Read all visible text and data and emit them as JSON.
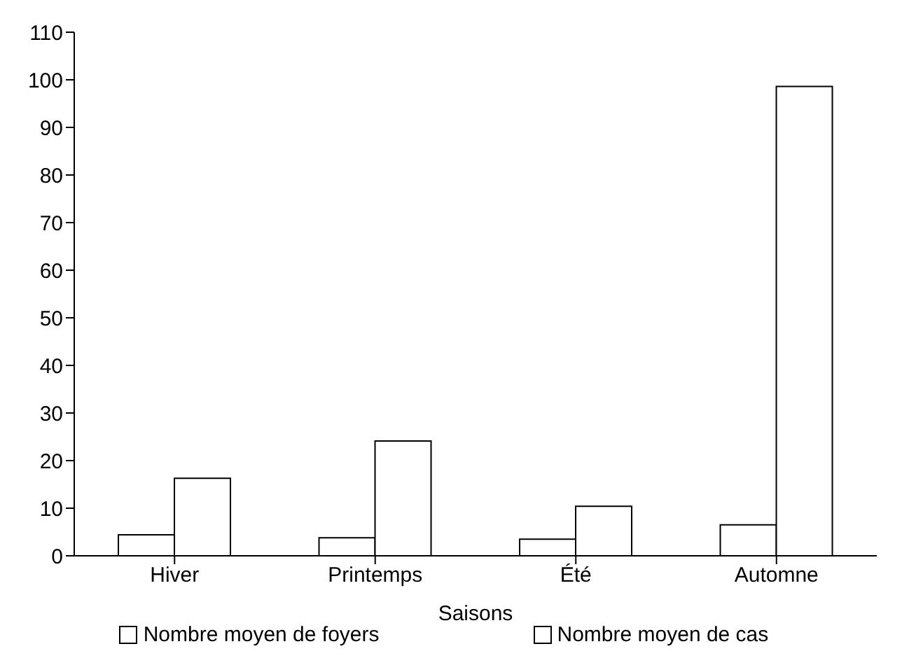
{
  "chart_data": {
    "type": "bar",
    "xlabel": "Saisons",
    "categories": [
      "Hiver",
      "Printemps",
      "Été",
      "Automne"
    ],
    "series": [
      {
        "name": "Nombre moyen de foyers",
        "color": "#ffffff",
        "values": [
          4.4,
          3.8,
          3.5,
          6.5
        ]
      },
      {
        "name": "Nombre moyen de cas",
        "color": "#ffffff",
        "values": [
          16.3,
          24.1,
          10.4,
          98.6
        ]
      }
    ],
    "ylim": [
      0,
      110
    ],
    "yticks": [
      0,
      10,
      20,
      30,
      40,
      50,
      60,
      70,
      80,
      90,
      100,
      110
    ],
    "grid": false,
    "legend": "bottom"
  }
}
